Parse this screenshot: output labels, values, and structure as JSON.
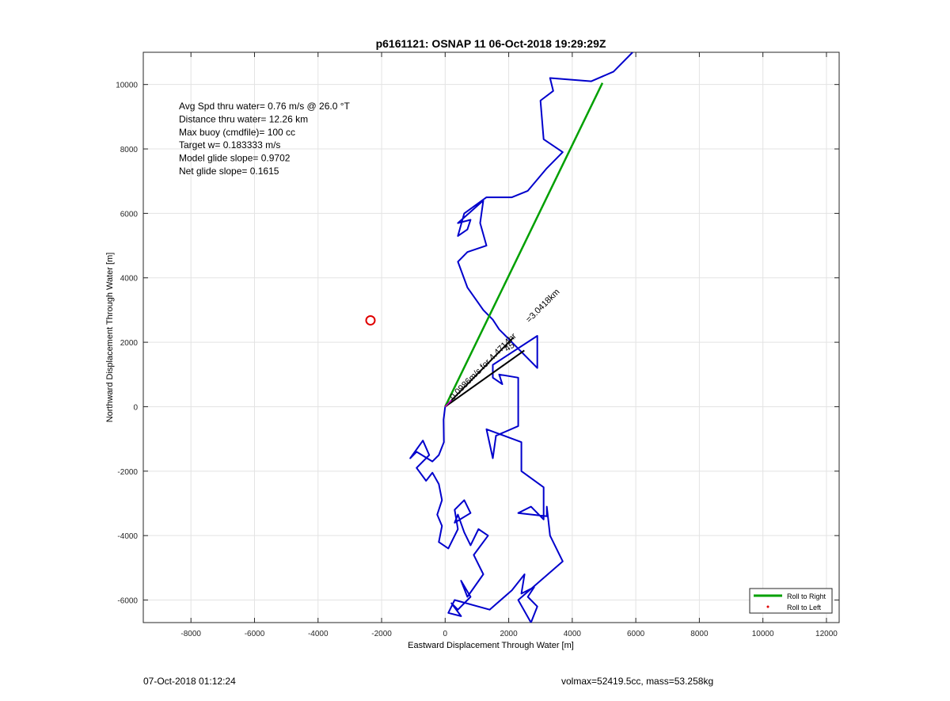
{
  "chart_data": {
    "type": "line",
    "title": "p6161121: OSNAP 11 06-Oct-2018 19:29:29Z",
    "xlabel": "Eastward Displacement Through Water [m]",
    "ylabel": "Northward Displacement Through Water [m]",
    "xlim": [
      -9500,
      12400
    ],
    "ylim": [
      -6700,
      11000
    ],
    "xticks": [
      -8000,
      -6000,
      -4000,
      -2000,
      0,
      2000,
      4000,
      6000,
      8000,
      10000,
      12000
    ],
    "yticks": [
      -6000,
      -4000,
      -2000,
      0,
      2000,
      4000,
      6000,
      8000,
      10000
    ],
    "grid": true,
    "legend_position": "bottom-right",
    "colors": {
      "track": "#0000cc",
      "net": "#00a000",
      "target": "#e00000",
      "vector": "#000000"
    },
    "info_lines": [
      "Avg Spd thru water=  0.76 m/s @  26.0 °T",
      "Distance thru water= 12.26 km",
      "Max buoy (cmdfile)= 100 cc",
      "Target w= 0.183333 m/s",
      "Model glide slope= 0.9702",
      "Net glide slope= 0.1615"
    ],
    "series": [
      {
        "name": "Roll to Right",
        "color": "#00a000",
        "points": [
          [
            0,
            0
          ],
          [
            4950,
            10050
          ]
        ]
      },
      {
        "name": "Roll to Left",
        "color": "#e00000",
        "points": []
      }
    ],
    "track": [
      [
        0,
        0
      ],
      [
        -50,
        -400
      ],
      [
        -40,
        -1100
      ],
      [
        -200,
        -1500
      ],
      [
        -400,
        -1700
      ],
      [
        -900,
        -1400
      ],
      [
        -1100,
        -1600
      ],
      [
        -700,
        -1050
      ],
      [
        -500,
        -1500
      ],
      [
        -900,
        -1900
      ],
      [
        -600,
        -2300
      ],
      [
        -400,
        -2050
      ],
      [
        -200,
        -2400
      ],
      [
        -100,
        -2900
      ],
      [
        -250,
        -3350
      ],
      [
        -100,
        -3700
      ],
      [
        -200,
        -4200
      ],
      [
        100,
        -4400
      ],
      [
        400,
        -3800
      ],
      [
        300,
        -3200
      ],
      [
        600,
        -2900
      ],
      [
        800,
        -3300
      ],
      [
        300,
        -3600
      ],
      [
        400,
        -3350
      ],
      [
        600,
        -3900
      ],
      [
        800,
        -4300
      ],
      [
        1050,
        -3800
      ],
      [
        1350,
        -4000
      ],
      [
        900,
        -4600
      ],
      [
        1200,
        -5200
      ],
      [
        700,
        -5900
      ],
      [
        500,
        -5400
      ],
      [
        800,
        -5900
      ],
      [
        400,
        -6300
      ],
      [
        200,
        -6100
      ],
      [
        500,
        -6500
      ],
      [
        100,
        -6400
      ],
      [
        300,
        -6000
      ],
      [
        1400,
        -6300
      ],
      [
        2100,
        -5700
      ],
      [
        2500,
        -5200
      ],
      [
        2400,
        -5800
      ],
      [
        2800,
        -5600
      ],
      [
        2600,
        -5900
      ],
      [
        2900,
        -6200
      ],
      [
        2700,
        -6700
      ],
      [
        2300,
        -6000
      ],
      [
        3700,
        -4800
      ],
      [
        3300,
        -4000
      ],
      [
        3200,
        -3100
      ],
      [
        3200,
        -3400
      ],
      [
        2300,
        -3300
      ],
      [
        2700,
        -3100
      ],
      [
        3100,
        -3500
      ],
      [
        3100,
        -2500
      ],
      [
        2400,
        -2000
      ],
      [
        2400,
        -1100
      ],
      [
        1300,
        -700
      ],
      [
        1500,
        -1600
      ],
      [
        1600,
        -900
      ],
      [
        2300,
        -600
      ],
      [
        2300,
        900
      ],
      [
        1700,
        1000
      ],
      [
        1800,
        700
      ],
      [
        1500,
        900
      ],
      [
        1500,
        1300
      ],
      [
        2900,
        2200
      ],
      [
        2900,
        1200
      ],
      [
        1700,
        2400
      ],
      [
        1500,
        2700
      ],
      [
        1200,
        3000
      ],
      [
        700,
        3700
      ],
      [
        400,
        4500
      ],
      [
        700,
        4800
      ],
      [
        1300,
        5000
      ],
      [
        1100,
        5700
      ],
      [
        1200,
        6400
      ],
      [
        400,
        5700
      ],
      [
        800,
        5800
      ],
      [
        700,
        5500
      ],
      [
        400,
        5300
      ],
      [
        600,
        6000
      ],
      [
        1300,
        6500
      ],
      [
        2100,
        6500
      ],
      [
        2600,
        6700
      ],
      [
        3200,
        7400
      ],
      [
        3700,
        7900
      ],
      [
        3100,
        8300
      ],
      [
        3000,
        9500
      ],
      [
        3400,
        9800
      ],
      [
        3300,
        10200
      ],
      [
        4600,
        10100
      ],
      [
        5300,
        10400
      ],
      [
        5900,
        11000
      ]
    ],
    "target": {
      "x": -2350,
      "y": 2680
    },
    "vectors": [
      {
        "angle_deg": 35,
        "length_m": 3041.8
      },
      {
        "angle_deg": 45,
        "length_m": 3041.8
      }
    ],
    "annotations": [
      {
        "text": "=3.0418km",
        "x": 2650,
        "y": 2600,
        "angle": -45
      },
      {
        "text": "45",
        "x": 1950,
        "y": 1700,
        "angle": -35
      },
      {
        "text": "0.0986m/s for 4.4714hr",
        "x": 250,
        "y": 200,
        "angle": -45
      }
    ]
  },
  "footer": {
    "timestamp": "07-Oct-2018 01:12:24",
    "stats": "volmax=52419.5cc, mass=53.258kg"
  }
}
